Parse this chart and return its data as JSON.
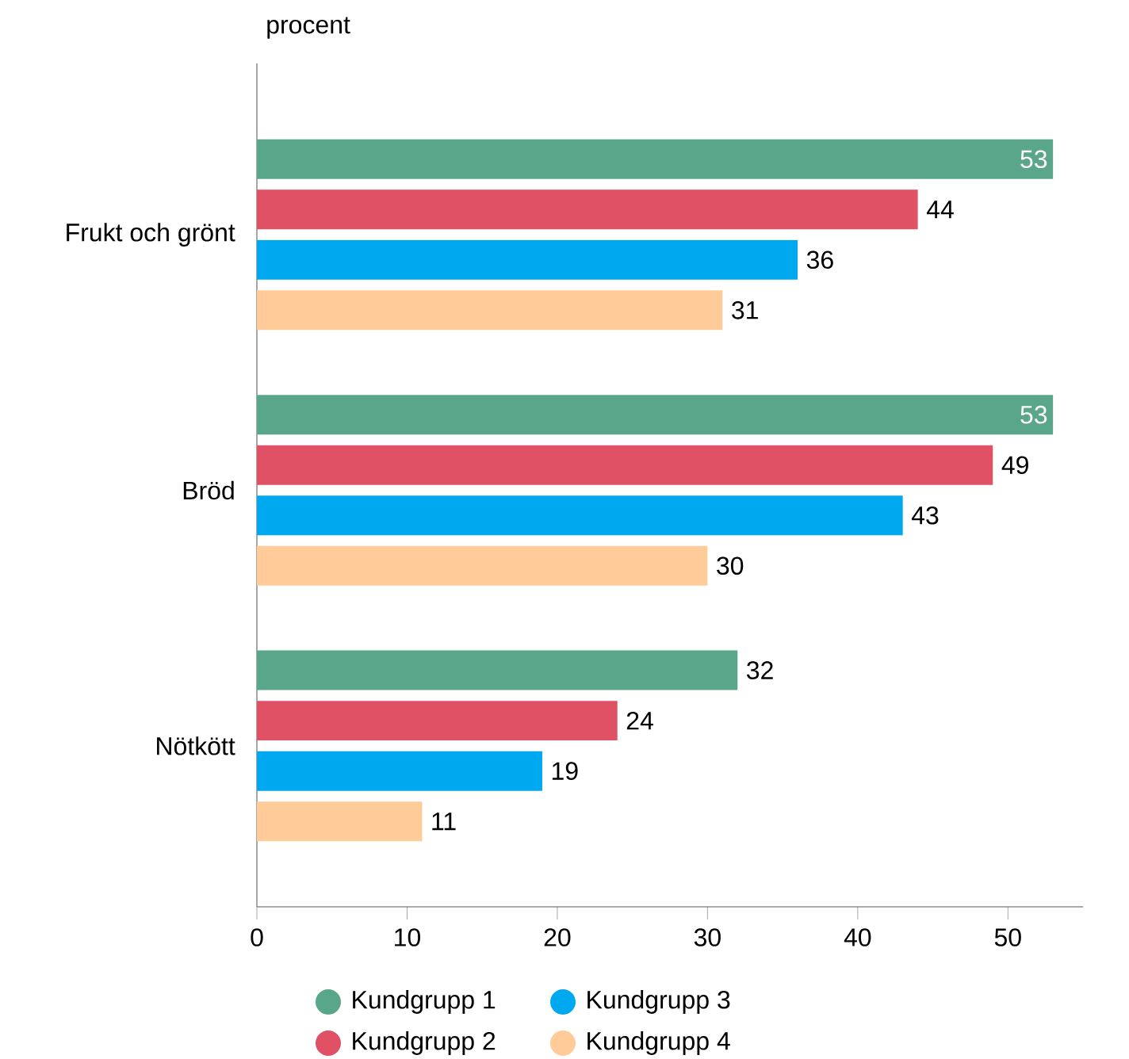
{
  "chart_data": {
    "type": "bar",
    "orientation": "horizontal",
    "ylabel": "procent",
    "categories": [
      "Frukt och grönt",
      "Bröd",
      "Nötkött"
    ],
    "series": [
      {
        "name": "Kundgrupp 1",
        "color": "#5aa68a",
        "values": [
          53,
          53,
          32
        ]
      },
      {
        "name": "Kundgrupp 2",
        "color": "#e05166",
        "values": [
          44,
          49,
          24
        ]
      },
      {
        "name": "Kundgrupp 3",
        "color": "#00a8f0",
        "values": [
          36,
          43,
          19
        ]
      },
      {
        "name": "Kundgrupp 4",
        "color": "#ffcc99",
        "values": [
          31,
          30,
          11
        ]
      }
    ],
    "xlim": [
      0,
      55
    ],
    "xticks": [
      0,
      10,
      20,
      30,
      40,
      50
    ],
    "data_labels": true,
    "legend": "bottom",
    "grid": false
  }
}
